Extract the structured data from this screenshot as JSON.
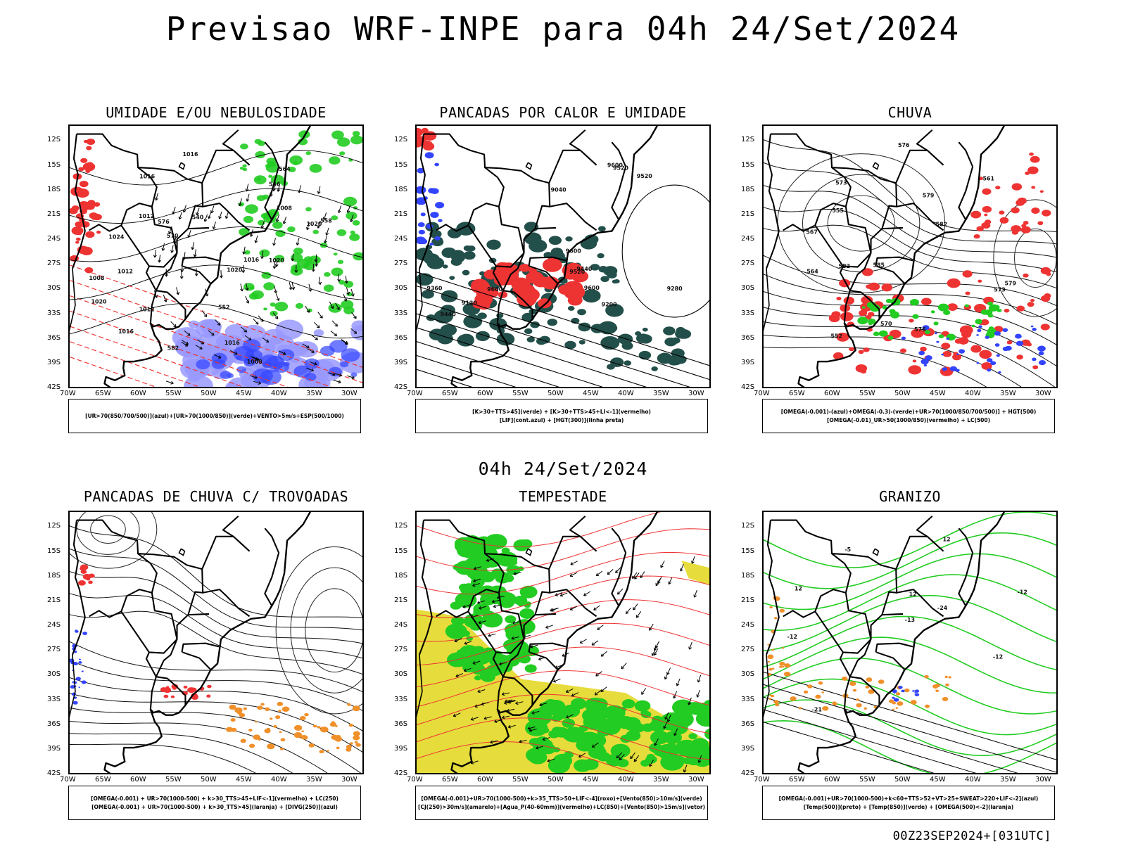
{
  "page": {
    "title": "Previsao WRF-INPE  para 04h 24/Set/2024",
    "mid_title": "04h 24/Set/2024",
    "footer": "00Z23SEP2024+[031UTC]"
  },
  "colors": {
    "green": "#22cc22",
    "red": "#ee3333",
    "blue": "#3344ff",
    "lightblue": "#9999ff",
    "darkgreen": "#234f4a",
    "yellow": "#e6dc3c",
    "orange": "#f0902a",
    "black": "#000000"
  },
  "axes": {
    "lat_labels": [
      "12S",
      "15S",
      "18S",
      "21S",
      "24S",
      "27S",
      "30S",
      "33S",
      "36S",
      "39S",
      "42S"
    ],
    "lon_labels": [
      "70W",
      "65W",
      "60W",
      "55W",
      "50W",
      "45W",
      "40W",
      "35W",
      "30W"
    ]
  },
  "panels": [
    {
      "id": "umidade",
      "title": "UMIDADE E/OU NEBULOSIDADE",
      "legend": [
        "[UR>70(850/700/500)](azul)+[UR>70(1000/850)](verde)+VENTO>5m/s+ESP(500/1000)"
      ],
      "labels": [
        "1012",
        "1008",
        "1008",
        "1012",
        "1016",
        "1020",
        "1016",
        "1008",
        "1012",
        "1016",
        "1020",
        "1024",
        "1020",
        "1016",
        "1016",
        "1020",
        "564",
        "570",
        "576",
        "582",
        "558",
        "552",
        "546",
        "540"
      ]
    },
    {
      "id": "pancadas-calor",
      "title": "PANCADAS POR CALOR E UMIDADE",
      "legend": [
        "[K>30+TTS>45](verde) + [K>30+TTS>45+LI<-1](vermelho)",
        "[LIF](cont.azul) + [HGT(300)](linha preta)"
      ],
      "labels": [
        "9600",
        "9600",
        "9600",
        "9600",
        "9520",
        "9440",
        "9360",
        "9280",
        "9200",
        "9120",
        "9040",
        "9520",
        "9440",
        "9520"
      ]
    },
    {
      "id": "chuva",
      "title": "CHUVA",
      "legend": [
        "[OMEGA(-0.001)-(azul)+OMEGA(-0.3)-(verde)+UR>70(1000/850/700/500)] + HGT(500)",
        "[OMEGA(-0.01)_UR>50(1000/850)(vermelho) + LC(500)"
      ],
      "labels": [
        "582",
        "576",
        "585",
        "579",
        "573",
        "567",
        "561",
        "555",
        "552",
        "564",
        "570",
        "576",
        "573",
        "579",
        "582"
      ]
    },
    {
      "id": "trovoadas",
      "title": "PANCADAS DE CHUVA C/ TROVOADAS",
      "legend": [
        "[OMEGA(-0.001) + UR>70(1000-500) + k>30_TTS>45+LIF<-1](vermelho) + LC(250)",
        "[OMEGA(-0.001) + UR>70(1000-500) + k>30_TTS>45](laranja) + [DIVG(250)](azul)"
      ],
      "labels": []
    },
    {
      "id": "tempestade",
      "title": "TEMPESTADE",
      "legend": [
        "[OMEGA(-0.001)+UR>70(1000-500)+k>35_TTS>50+LIF<-4](roxo)+[Vento(850)>10m/s](verde)",
        "[CJ(250)>30m/s](amarelo)+[Agua_P(40-60mm)](vermelho)+LC(850)+[Vento(850)>15m/s](vetor)"
      ],
      "labels": []
    },
    {
      "id": "granizo",
      "title": "GRANIZO",
      "legend": [
        "[OMEGA(-0.001)+UR>70(1000-500)+k<60+TTS>52+VT>25+SWEAT>220+LIF<-2](azul)",
        "[Temp(500)](preto) + [Temp(850)](verde) + [OMEGA(500)<-2](laranja)"
      ],
      "labels": [
        "-5",
        "12",
        "-12",
        "-12",
        "12",
        "-12",
        "-21",
        "-24",
        "12",
        "-13"
      ]
    }
  ]
}
